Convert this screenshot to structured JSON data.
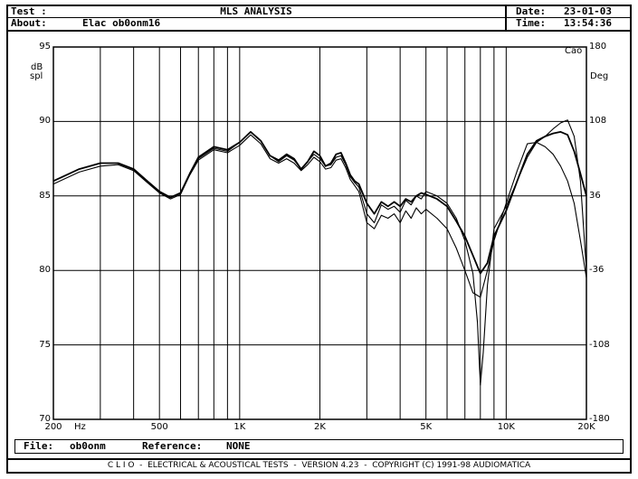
{
  "header": {
    "test_label": "Test :",
    "title": "MLS ANALYSIS",
    "about_label": "About:",
    "about_value": "Elac ob0onm16",
    "date_label": "Date:",
    "date_value": "23-01-03",
    "time_label": "Time:",
    "time_value": "13:54:36"
  },
  "footer": {
    "file_label": "File:",
    "file_value": "ob0onm",
    "reference_label": "Reference:",
    "reference_value": "NONE",
    "bottom_bar": "C L I O  -  ELECTRICAL & ACOUSTICAL TESTS  -  VERSION 4.23  -  COPYRIGHT (C) 1991-98 AUDIOMATICA"
  },
  "chart_data": {
    "type": "line",
    "x_scale": "log",
    "xlim": [
      200,
      20000
    ],
    "ylim": [
      70,
      95
    ],
    "y2lim": [
      -180,
      180
    ],
    "ylabel_line1": "dB",
    "ylabel_line2": "spl",
    "y2label": "Deg",
    "x_unit_label": "Hz",
    "phase_label": "Cāo",
    "x_ticks": [
      {
        "value": 200,
        "label": "200"
      },
      {
        "value": 500,
        "label": "500"
      },
      {
        "value": 1000,
        "label": "1K"
      },
      {
        "value": 2000,
        "label": "2K"
      },
      {
        "value": 5000,
        "label": "5K"
      },
      {
        "value": 10000,
        "label": "10K"
      },
      {
        "value": 20000,
        "label": "20K"
      }
    ],
    "y_ticks": [
      {
        "value": 95,
        "label": "95"
      },
      {
        "value": 90,
        "label": "90"
      },
      {
        "value": 85,
        "label": "85"
      },
      {
        "value": 80,
        "label": "80"
      },
      {
        "value": 75,
        "label": "75"
      },
      {
        "value": 70,
        "label": "70"
      }
    ],
    "y2_ticks": [
      {
        "value": 180,
        "label": "180"
      },
      {
        "value": 108,
        "label": "108"
      },
      {
        "value": 36,
        "label": "36"
      },
      {
        "value": -36,
        "label": "-36"
      },
      {
        "value": -108,
        "label": "-108"
      },
      {
        "value": -180,
        "label": "-180"
      }
    ],
    "grid": true,
    "series": [
      {
        "x": [
          200,
          250,
          300,
          350,
          400,
          450,
          500,
          550,
          600,
          650,
          700,
          800,
          900,
          1000,
          1100,
          1200,
          1300,
          1400,
          1500,
          1600,
          1700,
          1800,
          1900,
          2000,
          2100,
          2200,
          2300,
          2400,
          2500,
          2600,
          2700,
          2800,
          3000,
          3200,
          3400,
          3600,
          3800,
          4000,
          4200,
          4400,
          4600,
          4800,
          5000,
          5500,
          6000,
          6500,
          7000,
          7500,
          8000,
          8500,
          9000,
          10000,
          11000,
          12000,
          13000,
          14000,
          15000,
          16000,
          17000,
          18000,
          19000,
          20000
        ],
        "values": [
          86.0,
          86.8,
          87.2,
          87.2,
          86.8,
          86.0,
          85.3,
          84.9,
          85.2,
          86.5,
          87.6,
          88.3,
          88.1,
          88.6,
          89.3,
          88.7,
          87.7,
          87.4,
          87.8,
          87.5,
          86.8,
          87.3,
          88.0,
          87.7,
          87.0,
          87.2,
          87.8,
          87.9,
          87.2,
          86.4,
          86.0,
          85.8,
          84.5,
          83.8,
          84.6,
          84.3,
          84.6,
          84.3,
          84.8,
          84.6,
          85.0,
          85.2,
          85.1,
          84.8,
          84.3,
          83.3,
          82.3,
          81.0,
          79.8,
          80.5,
          82.3,
          84.0,
          86.0,
          87.8,
          88.7,
          89.0,
          89.2,
          89.3,
          89.1,
          88.0,
          86.5,
          85.0
        ]
      },
      {
        "x": [
          200,
          250,
          300,
          350,
          400,
          450,
          500,
          550,
          600,
          650,
          700,
          800,
          900,
          1000,
          1100,
          1200,
          1300,
          1400,
          1500,
          1600,
          1700,
          1800,
          1900,
          2000,
          2100,
          2200,
          2300,
          2400,
          2500,
          2600,
          2700,
          2800,
          3000,
          3200,
          3400,
          3600,
          3800,
          4000,
          4200,
          4400,
          4600,
          4800,
          5000,
          5500,
          6000,
          6500,
          7000,
          7500,
          7800,
          8000,
          8200,
          8500,
          9000,
          10000,
          11000,
          12000,
          13000,
          14000,
          15000,
          16000,
          17000,
          18000,
          19000,
          20000
        ],
        "values": [
          86.0,
          86.8,
          87.2,
          87.2,
          86.8,
          86.0,
          85.3,
          84.9,
          85.2,
          86.5,
          87.5,
          88.2,
          88.0,
          88.6,
          89.3,
          88.7,
          87.7,
          87.3,
          87.7,
          87.4,
          86.8,
          87.3,
          87.8,
          87.5,
          87.0,
          87.1,
          87.6,
          87.7,
          87.1,
          86.3,
          85.9,
          85.6,
          83.8,
          83.2,
          84.4,
          84.1,
          84.3,
          83.9,
          84.7,
          84.4,
          85.0,
          84.8,
          85.3,
          85.0,
          84.5,
          83.5,
          82.0,
          79.8,
          76.5,
          72.3,
          74.5,
          79.0,
          82.8,
          84.3,
          86.0,
          87.6,
          88.6,
          89.0,
          89.5,
          89.9,
          90.1,
          89.0,
          86.0,
          80.0
        ]
      },
      {
        "x": [
          200,
          250,
          300,
          350,
          400,
          450,
          500,
          550,
          600,
          650,
          700,
          800,
          900,
          1000,
          1100,
          1200,
          1300,
          1400,
          1500,
          1600,
          1700,
          1800,
          1900,
          2000,
          2100,
          2200,
          2300,
          2400,
          2500,
          2600,
          2700,
          2800,
          3000,
          3200,
          3400,
          3600,
          3800,
          4000,
          4200,
          4400,
          4600,
          4800,
          5000,
          5500,
          6000,
          6500,
          7000,
          7500,
          8000,
          8500,
          9000,
          10000,
          11000,
          12000,
          13000,
          14000,
          15000,
          16000,
          17000,
          18000,
          19000,
          20000
        ],
        "values": [
          85.8,
          86.6,
          87.0,
          87.1,
          86.7,
          85.9,
          85.2,
          84.8,
          85.1,
          86.4,
          87.4,
          88.1,
          87.9,
          88.4,
          89.1,
          88.5,
          87.5,
          87.2,
          87.5,
          87.2,
          86.7,
          87.1,
          87.6,
          87.3,
          86.8,
          86.9,
          87.4,
          87.5,
          86.9,
          86.1,
          85.7,
          85.3,
          83.2,
          82.8,
          83.7,
          83.5,
          83.8,
          83.2,
          84.0,
          83.5,
          84.2,
          83.8,
          84.1,
          83.5,
          82.8,
          81.5,
          80.0,
          78.5,
          78.2,
          80.0,
          82.0,
          84.5,
          86.7,
          88.5,
          88.6,
          88.3,
          87.8,
          87.0,
          86.0,
          84.5,
          82.0,
          79.5
        ]
      }
    ]
  }
}
